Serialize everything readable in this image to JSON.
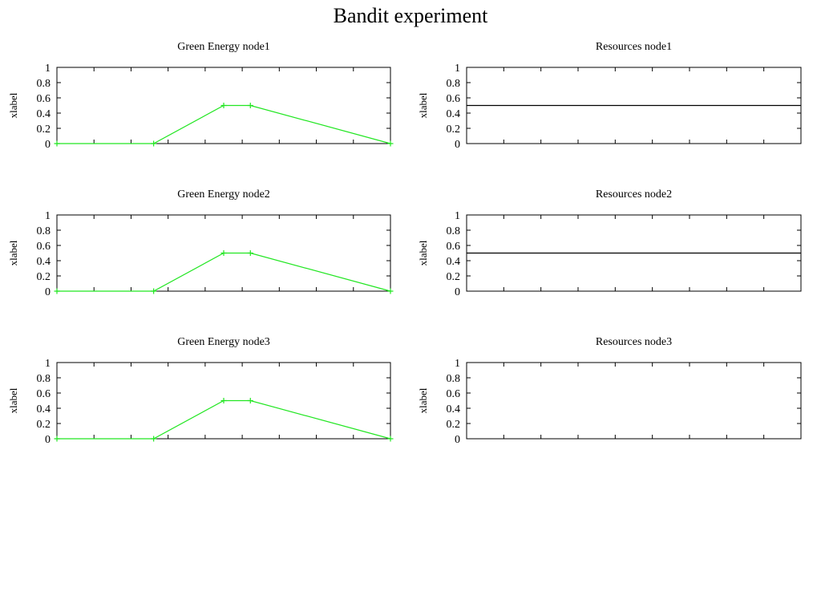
{
  "figure": {
    "title": "Bandit experiment"
  },
  "colors": {
    "green_series": "#22e622",
    "black_series": "#000000"
  },
  "chart_data": [
    {
      "type": "line",
      "title": "Green Energy node1",
      "ylabel": "xlabel",
      "xlabel": "",
      "ylim": [
        0,
        1
      ],
      "y_ticks": [
        "0",
        "0.2",
        "0.4",
        "0.6",
        "0.8",
        "1"
      ],
      "x_tick_count": 10,
      "grid": false,
      "color": "#22e622",
      "show_markers": true,
      "series": [
        {
          "x": [
            0,
            0.29,
            0.5,
            0.58,
            1.0
          ],
          "values": [
            0,
            0,
            0.5,
            0.5,
            0
          ]
        }
      ]
    },
    {
      "type": "line",
      "title": "Resources node1",
      "ylabel": "xlabel",
      "xlabel": "",
      "ylim": [
        0,
        1
      ],
      "y_ticks": [
        "0",
        "0.2",
        "0.4",
        "0.6",
        "0.8",
        "1"
      ],
      "x_tick_count": 10,
      "grid": false,
      "color": "#000000",
      "show_markers": false,
      "series": [
        {
          "x": [
            0,
            1.0
          ],
          "values": [
            0.5,
            0.5
          ]
        }
      ]
    },
    {
      "type": "line",
      "title": "Green Energy node2",
      "ylabel": "xlabel",
      "xlabel": "",
      "ylim": [
        0,
        1
      ],
      "y_ticks": [
        "0",
        "0.2",
        "0.4",
        "0.6",
        "0.8",
        "1"
      ],
      "x_tick_count": 10,
      "grid": false,
      "color": "#22e622",
      "show_markers": true,
      "series": [
        {
          "x": [
            0,
            0.29,
            0.5,
            0.58,
            1.0
          ],
          "values": [
            0,
            0,
            0.5,
            0.5,
            0
          ]
        }
      ]
    },
    {
      "type": "line",
      "title": "Resources node2",
      "ylabel": "xlabel",
      "xlabel": "",
      "ylim": [
        0,
        1
      ],
      "y_ticks": [
        "0",
        "0.2",
        "0.4",
        "0.6",
        "0.8",
        "1"
      ],
      "x_tick_count": 10,
      "grid": false,
      "color": "#000000",
      "show_markers": false,
      "series": [
        {
          "x": [
            0,
            1.0
          ],
          "values": [
            0.5,
            0.5
          ]
        }
      ]
    },
    {
      "type": "line",
      "title": "Green Energy node3",
      "ylabel": "xlabel",
      "xlabel": "",
      "ylim": [
        0,
        1
      ],
      "y_ticks": [
        "0",
        "0.2",
        "0.4",
        "0.6",
        "0.8",
        "1"
      ],
      "x_tick_count": 10,
      "grid": false,
      "color": "#22e622",
      "show_markers": true,
      "series": [
        {
          "x": [
            0,
            0.29,
            0.5,
            0.58,
            1.0
          ],
          "values": [
            0,
            0,
            0.5,
            0.5,
            0
          ]
        }
      ]
    },
    {
      "type": "line",
      "title": "Resources node3",
      "ylabel": "xlabel",
      "xlabel": "",
      "ylim": [
        0,
        1
      ],
      "y_ticks": [
        "0",
        "0.2",
        "0.4",
        "0.6",
        "0.8",
        "1"
      ],
      "x_tick_count": 10,
      "grid": false,
      "color": "#000000",
      "show_markers": false,
      "series": []
    }
  ]
}
